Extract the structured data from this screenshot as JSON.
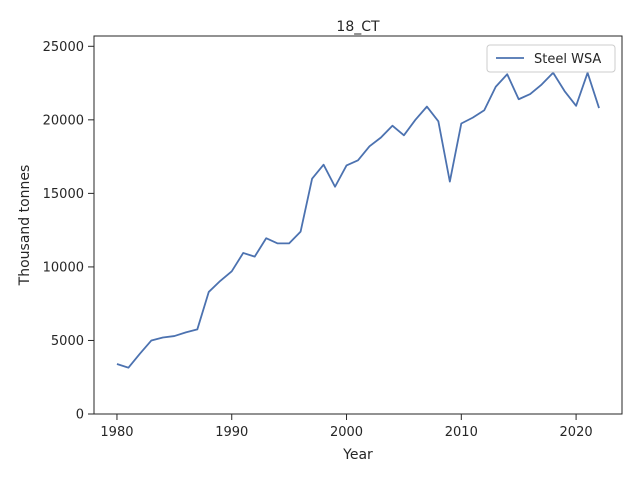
{
  "chart_data": {
    "type": "line",
    "title": "18_CT",
    "xlabel": "Year",
    "ylabel": "Thousand tonnes",
    "xlim": [
      1978,
      2024
    ],
    "ylim": [
      0,
      25700
    ],
    "xticks": [
      1980,
      1990,
      2000,
      2010,
      2020
    ],
    "yticks": [
      0,
      5000,
      10000,
      15000,
      20000,
      25000
    ],
    "grid": false,
    "legend": "top-right",
    "colors": {
      "series": "#4c72b0",
      "axis": "#262626"
    },
    "series": [
      {
        "name": "Steel WSA",
        "x": [
          1980,
          1981,
          1982,
          1983,
          1984,
          1985,
          1986,
          1987,
          1988,
          1989,
          1990,
          1991,
          1992,
          1993,
          1994,
          1995,
          1996,
          1997,
          1998,
          1999,
          2000,
          2001,
          2002,
          2003,
          2004,
          2005,
          2006,
          2007,
          2008,
          2009,
          2010,
          2011,
          2012,
          2013,
          2014,
          2015,
          2016,
          2017,
          2018,
          2019,
          2020,
          2021,
          2022
        ],
        "y": [
          3400,
          3150,
          4100,
          5000,
          5200,
          5300,
          5550,
          5750,
          8300,
          9050,
          9700,
          10950,
          10700,
          11950,
          11600,
          11600,
          12400,
          16000,
          16950,
          15450,
          16900,
          17250,
          18200,
          18800,
          19600,
          18950,
          20000,
          20900,
          19900,
          15800,
          19750,
          20150,
          20650,
          22250,
          23100,
          21400,
          21750,
          22400,
          23200,
          21950,
          20950,
          23200,
          20800
        ]
      }
    ]
  }
}
